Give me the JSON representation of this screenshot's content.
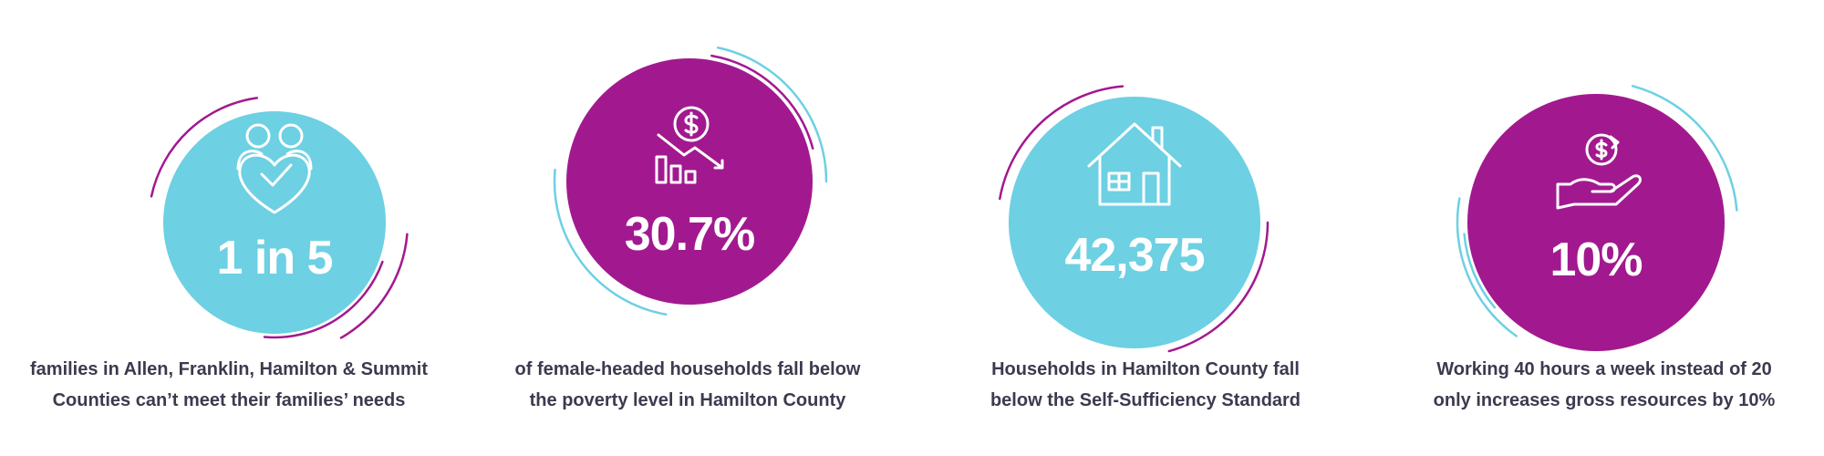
{
  "stats": [
    {
      "value": "1 in 5",
      "caption": [
        "families in Allen, Franklin, Hamilton & Summit",
        "Counties can’t meet their families’ needs"
      ]
    },
    {
      "value": "30.7%",
      "caption": [
        "of female-headed households fall below",
        "the poverty level in Hamilton County"
      ]
    },
    {
      "value": "42,375",
      "caption": [
        "Households in Hamilton County fall",
        "below the Self-Sufficiency Standard"
      ]
    },
    {
      "value": "10%",
      "caption": [
        "Working 40 hours a week instead of 20",
        "only increases gross resources by 10%"
      ]
    }
  ]
}
